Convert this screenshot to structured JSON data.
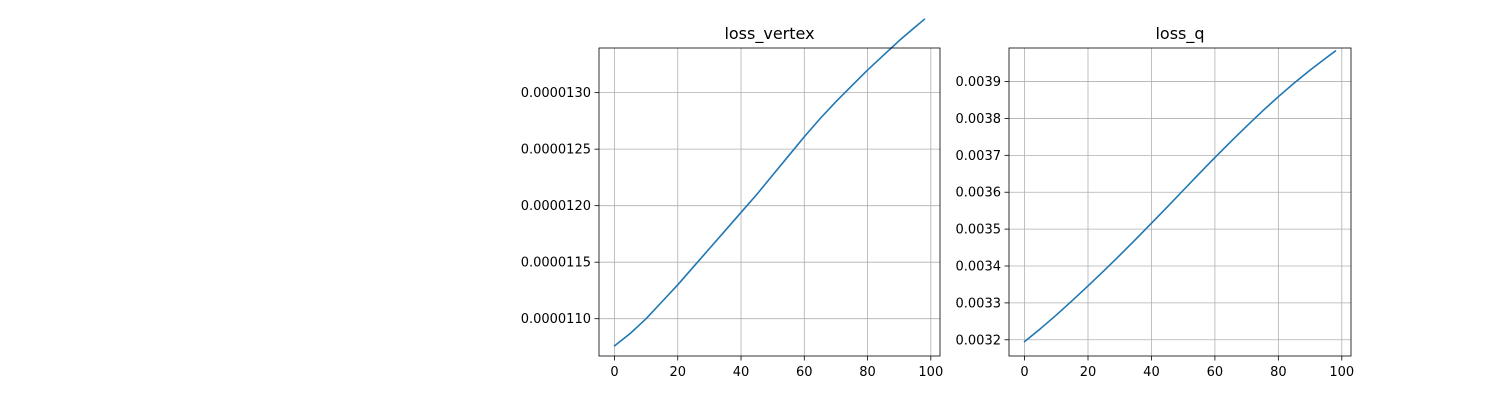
{
  "chart_data": [
    {
      "type": "line",
      "title": "loss_vertex",
      "xlabel": "",
      "ylabel": "",
      "grid": true,
      "xlim": [
        -4.9,
        102.9
      ],
      "ylim": [
        1.067e-05,
        1.3395e-05
      ],
      "xticks": [
        0,
        20,
        40,
        60,
        80,
        100
      ],
      "xtick_labels": [
        "0",
        "20",
        "40",
        "60",
        "80",
        "100"
      ],
      "yticks": [
        1.1e-05,
        1.15e-05,
        1.2e-05,
        1.25e-05,
        1.3e-05
      ],
      "ytick_labels": [
        "0.0000110",
        "0.0000115",
        "0.0000120",
        "0.0000125",
        "0.0000130"
      ],
      "series": [
        {
          "color": "#1f77b4",
          "x": [
            0,
            5,
            10,
            15,
            20,
            25,
            30,
            35,
            40,
            45,
            50,
            55,
            60,
            65,
            70,
            75,
            80,
            85,
            90,
            95,
            98
          ],
          "y": [
            1.076e-05,
            1.087e-05,
            1.1e-05,
            1.115e-05,
            1.13e-05,
            1.146e-05,
            1.162e-05,
            1.178e-05,
            1.194e-05,
            1.21e-05,
            1.227e-05,
            1.244e-05,
            1.261e-05,
            1.277e-05,
            1.292e-05,
            1.306e-05,
            1.32e-05,
            1.333e-05,
            1.346e-05,
            1.358e-05,
            1.365e-05
          ]
        }
      ]
    },
    {
      "type": "line",
      "title": "loss_q",
      "xlabel": "",
      "ylabel": "",
      "grid": true,
      "xlim": [
        -4.9,
        102.9
      ],
      "ylim": [
        0.003156,
        0.003991
      ],
      "xticks": [
        0,
        20,
        40,
        60,
        80,
        100
      ],
      "xtick_labels": [
        "0",
        "20",
        "40",
        "60",
        "80",
        "100"
      ],
      "yticks": [
        0.0032,
        0.0033,
        0.0034,
        0.0035,
        0.0036,
        0.0037,
        0.0038,
        0.0039
      ],
      "ytick_labels": [
        "0.0032",
        "0.0033",
        "0.0034",
        "0.0035",
        "0.0036",
        "0.0037",
        "0.0038",
        "0.0039"
      ],
      "series": [
        {
          "color": "#1f77b4",
          "x": [
            0,
            5,
            10,
            15,
            20,
            25,
            30,
            35,
            40,
            45,
            50,
            55,
            60,
            65,
            70,
            75,
            80,
            85,
            90,
            95,
            98
          ],
          "y": [
            0.003195,
            0.00323,
            0.003267,
            0.003306,
            0.003346,
            0.003387,
            0.003429,
            0.003472,
            0.003516,
            0.00356,
            0.003605,
            0.00365,
            0.003694,
            0.003737,
            0.003779,
            0.00382,
            0.003859,
            0.003896,
            0.003931,
            0.003964,
            0.003983
          ]
        }
      ]
    }
  ]
}
